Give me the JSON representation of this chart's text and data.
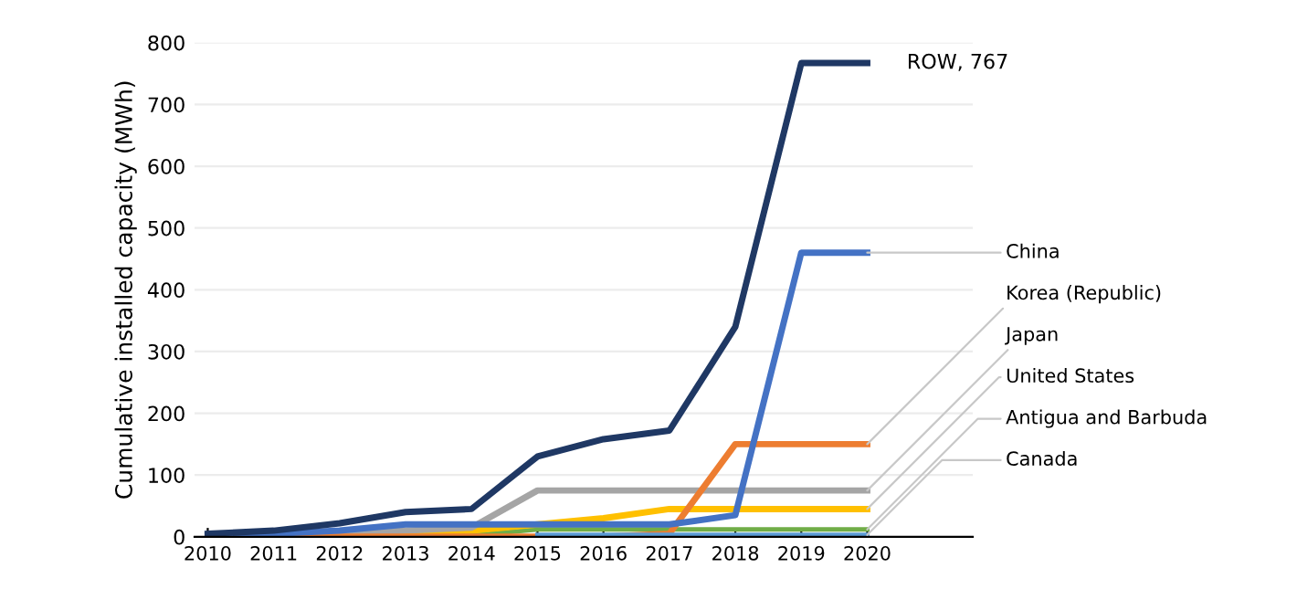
{
  "chart_data": {
    "type": "line",
    "ylabel": "Cumulative installed capacity (MWh)",
    "x": [
      2010,
      2011,
      2012,
      2013,
      2014,
      2015,
      2016,
      2017,
      2018,
      2019,
      2020
    ],
    "xlim": [
      2009.8,
      2021.6
    ],
    "xticks": [
      2010,
      2011,
      2012,
      2013,
      2014,
      2015,
      2016,
      2017,
      2018,
      2019,
      2020
    ],
    "ylim": [
      0,
      800
    ],
    "yticks": [
      0,
      100,
      200,
      300,
      400,
      500,
      600,
      700,
      800
    ],
    "grid": "y",
    "legend": false,
    "marker": "none",
    "line_style": "solid",
    "series": [
      {
        "name": "ROW, 767",
        "color": "#1f3864",
        "values": [
          5,
          10,
          22,
          40,
          45,
          130,
          158,
          172,
          340,
          767,
          767
        ]
      },
      {
        "name": "China",
        "color": "#4472c4",
        "values": [
          2,
          5,
          10,
          20,
          20,
          20,
          20,
          20,
          35,
          460,
          460
        ]
      },
      {
        "name": "Korea (Republic)",
        "color": "#ed7d31",
        "values": [
          0,
          0,
          0,
          0,
          0,
          0,
          0,
          5,
          150,
          150,
          150
        ]
      },
      {
        "name": "Japan",
        "color": "#a5a5a5",
        "values": [
          0,
          2,
          5,
          10,
          15,
          75,
          75,
          75,
          75,
          75,
          75
        ]
      },
      {
        "name": "United States",
        "color": "#ffc000",
        "values": [
          null,
          null,
          6,
          8,
          10,
          20,
          30,
          45,
          45,
          45,
          45
        ]
      },
      {
        "name": "Antigua and Barbuda",
        "color": "#70ad47",
        "values": [
          null,
          null,
          null,
          0,
          2,
          12,
          12,
          12,
          12,
          12,
          12
        ]
      },
      {
        "name": "Canada",
        "color": "#5b9bd5",
        "values": [
          null,
          null,
          null,
          null,
          null,
          3,
          3,
          3,
          3,
          3,
          3
        ]
      }
    ]
  }
}
